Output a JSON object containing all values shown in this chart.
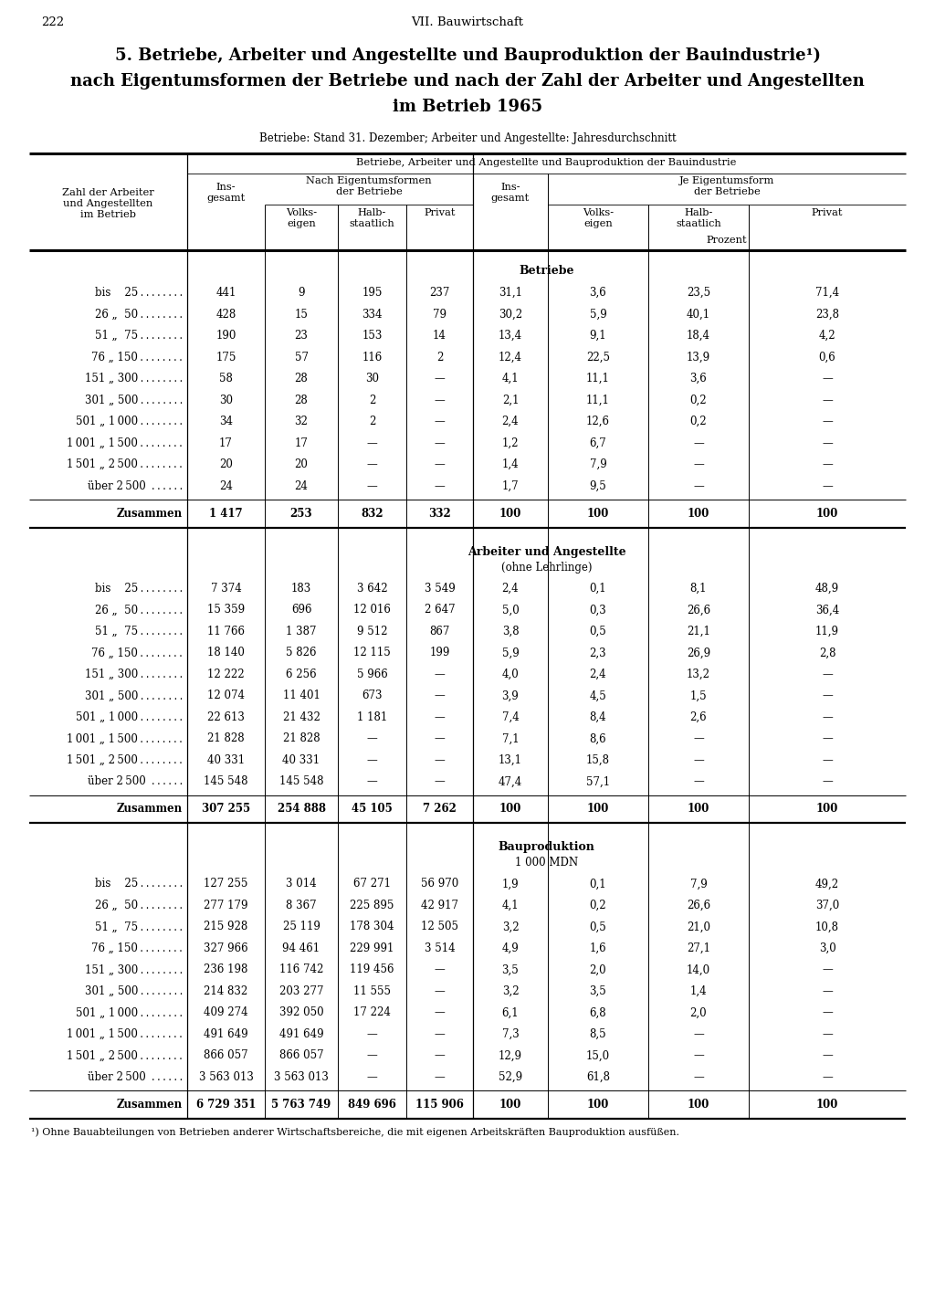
{
  "page_num": "222",
  "chapter": "VII. Bauwirtschaft",
  "title_line1": "5. Betriebe, Arbeiter und Angestellte und Bauproduktion der Bauindustrie¹)",
  "title_line2": "nach Eigentumsformen der Betriebe und nach der Zahl der Arbeiter und Angestellten",
  "title_line3": "im Betrieb 1965",
  "subtitle": "Betriebe: Stand 31. Dezember; Arbeiter und Angestellte: Jahresdurchschnitt",
  "col_header_main": "Betriebe, Arbeiter und Angestellte und Bauproduktion der Bauindustrie",
  "col_header_left": [
    "Zahl der Arbeiter",
    "und Angestellten",
    "im Betrieb"
  ],
  "prozent": "Prozent",
  "section1_title": "Betriebe",
  "section1_rows": [
    [
      "bis    25 . . . . . . . .",
      "441",
      "9",
      "195",
      "237",
      "31,1",
      "3,6",
      "23,5",
      "71,4"
    ],
    [
      "26 „  50 . . . . . . . .",
      "428",
      "15",
      "334",
      "79",
      "30,2",
      "5,9",
      "40,1",
      "23,8"
    ],
    [
      "51 „  75 . . . . . . . .",
      "190",
      "23",
      "153",
      "14",
      "13,4",
      "9,1",
      "18,4",
      "4,2"
    ],
    [
      "76 „ 150 . . . . . . . .",
      "175",
      "57",
      "116",
      "2",
      "12,4",
      "22,5",
      "13,9",
      "0,6"
    ],
    [
      "151 „ 300 . . . . . . . .",
      "58",
      "28",
      "30",
      "—",
      "4,1",
      "11,1",
      "3,6",
      "—"
    ],
    [
      "301 „ 500 . . . . . . . .",
      "30",
      "28",
      "2",
      "—",
      "2,1",
      "11,1",
      "0,2",
      "—"
    ],
    [
      "501 „ 1 000 . . . . . . . .",
      "34",
      "32",
      "2",
      "—",
      "2,4",
      "12,6",
      "0,2",
      "—"
    ],
    [
      "1 001 „ 1 500 . . . . . . . .",
      "17",
      "17",
      "—",
      "—",
      "1,2",
      "6,7",
      "—",
      "—"
    ],
    [
      "1 501 „ 2 500 . . . . . . . .",
      "20",
      "20",
      "—",
      "—",
      "1,4",
      "7,9",
      "—",
      "—"
    ],
    [
      "über 2 500  . . . . . .",
      "24",
      "24",
      "—",
      "—",
      "1,7",
      "9,5",
      "—",
      "—"
    ]
  ],
  "section1_total": [
    "Zusammen",
    "1 417",
    "253",
    "832",
    "332",
    "100",
    "100",
    "100",
    "100"
  ],
  "section2_title": "Arbeiter und Angestellte",
  "section2_subtitle": "(ohne Lehrlinge)",
  "section2_rows": [
    [
      "bis    25 . . . . . . . .",
      "7 374",
      "183",
      "3 642",
      "3 549",
      "2,4",
      "0,1",
      "8,1",
      "48,9"
    ],
    [
      "26 „  50 . . . . . . . .",
      "15 359",
      "696",
      "12 016",
      "2 647",
      "5,0",
      "0,3",
      "26,6",
      "36,4"
    ],
    [
      "51 „  75 . . . . . . . .",
      "11 766",
      "1 387",
      "9 512",
      "867",
      "3,8",
      "0,5",
      "21,1",
      "11,9"
    ],
    [
      "76 „ 150 . . . . . . . .",
      "18 140",
      "5 826",
      "12 115",
      "199",
      "5,9",
      "2,3",
      "26,9",
      "2,8"
    ],
    [
      "151 „ 300 . . . . . . . .",
      "12 222",
      "6 256",
      "5 966",
      "—",
      "4,0",
      "2,4",
      "13,2",
      "—"
    ],
    [
      "301 „ 500 . . . . . . . .",
      "12 074",
      "11 401",
      "673",
      "—",
      "3,9",
      "4,5",
      "1,5",
      "—"
    ],
    [
      "501 „ 1 000 . . . . . . . .",
      "22 613",
      "21 432",
      "1 181",
      "—",
      "7,4",
      "8,4",
      "2,6",
      "—"
    ],
    [
      "1 001 „ 1 500 . . . . . . . .",
      "21 828",
      "21 828",
      "—",
      "—",
      "7,1",
      "8,6",
      "—",
      "—"
    ],
    [
      "1 501 „ 2 500 . . . . . . . .",
      "40 331",
      "40 331",
      "—",
      "—",
      "13,1",
      "15,8",
      "—",
      "—"
    ],
    [
      "über 2 500  . . . . . .",
      "145 548",
      "145 548",
      "—",
      "—",
      "47,4",
      "57,1",
      "—",
      "—"
    ]
  ],
  "section2_total": [
    "Zusammen",
    "307 255",
    "254 888",
    "45 105",
    "7 262",
    "100",
    "100",
    "100",
    "100"
  ],
  "section3_title": "Bauproduktion",
  "section3_subtitle": "1 000 MDN",
  "section3_rows": [
    [
      "bis    25 . . . . . . . .",
      "127 255",
      "3 014",
      "67 271",
      "56 970",
      "1,9",
      "0,1",
      "7,9",
      "49,2"
    ],
    [
      "26 „  50 . . . . . . . .",
      "277 179",
      "8 367",
      "225 895",
      "42 917",
      "4,1",
      "0,2",
      "26,6",
      "37,0"
    ],
    [
      "51 „  75 . . . . . . . .",
      "215 928",
      "25 119",
      "178 304",
      "12 505",
      "3,2",
      "0,5",
      "21,0",
      "10,8"
    ],
    [
      "76 „ 150 . . . . . . . .",
      "327 966",
      "94 461",
      "229 991",
      "3 514",
      "4,9",
      "1,6",
      "27,1",
      "3,0"
    ],
    [
      "151 „ 300 . . . . . . . .",
      "236 198",
      "116 742",
      "119 456",
      "—",
      "3,5",
      "2,0",
      "14,0",
      "—"
    ],
    [
      "301 „ 500 . . . . . . . .",
      "214 832",
      "203 277",
      "11 555",
      "—",
      "3,2",
      "3,5",
      "1,4",
      "—"
    ],
    [
      "501 „ 1 000 . . . . . . . .",
      "409 274",
      "392 050",
      "17 224",
      "—",
      "6,1",
      "6,8",
      "2,0",
      "—"
    ],
    [
      "1 001 „ 1 500 . . . . . . . .",
      "491 649",
      "491 649",
      "—",
      "—",
      "7,3",
      "8,5",
      "—",
      "—"
    ],
    [
      "1 501 „ 2 500 . . . . . . . .",
      "866 057",
      "866 057",
      "—",
      "—",
      "12,9",
      "15,0",
      "—",
      "—"
    ],
    [
      "über 2 500  . . . . . .",
      "3 563 013",
      "3 563 013",
      "—",
      "—",
      "52,9",
      "61,8",
      "—",
      "—"
    ]
  ],
  "section3_total": [
    "Zusammen",
    "6 729 351",
    "5 763 749",
    "849 696",
    "115 906",
    "100",
    "100",
    "100",
    "100"
  ],
  "footnote": "¹) Ohne Bauabteilungen von Betrieben anderer Wirtschaftsbereiche, die mit eigenen Arbeitskräften Bauproduktion ausfüßen."
}
